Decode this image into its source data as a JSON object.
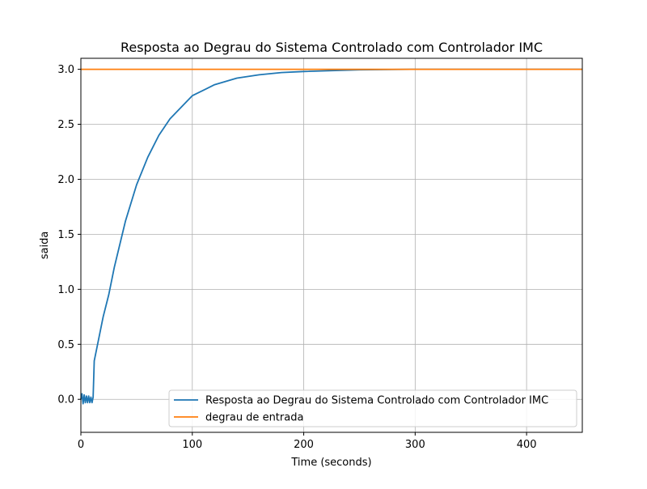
{
  "chart_data": {
    "type": "line",
    "title": "Resposta ao Degrau do Sistema Controlado com Controlador IMC",
    "xlabel": "Time (seconds)",
    "ylabel": "saida",
    "xlim": [
      0,
      450
    ],
    "ylim": [
      -0.3,
      3.1
    ],
    "x_ticks": [
      0,
      100,
      200,
      300,
      400
    ],
    "x_tick_labels": [
      "0",
      "100",
      "200",
      "300",
      "400"
    ],
    "y_ticks": [
      0,
      0.5,
      1.0,
      1.5,
      2.0,
      2.5,
      3.0
    ],
    "y_tick_labels": [
      "0.0",
      "0.5",
      "1.0",
      "1.5",
      "2.0",
      "2.5",
      "3.0"
    ],
    "grid": true,
    "legend_position": "bottom-right",
    "series": [
      {
        "name": "Resposta ao Degrau do Sistema Controlado com Controlador IMC",
        "color": "#1f77b4",
        "x": [
          0,
          1,
          2,
          3,
          4,
          5,
          6,
          7,
          8,
          9,
          10,
          11,
          12,
          15,
          20,
          23,
          25,
          30,
          40,
          50,
          60,
          70,
          80,
          100,
          120,
          140,
          160,
          180,
          200,
          250,
          300,
          350,
          400,
          450
        ],
        "y": [
          0,
          0.05,
          -0.04,
          0.04,
          -0.03,
          0.03,
          -0.03,
          0.03,
          -0.03,
          0.02,
          -0.03,
          0.02,
          0.35,
          0.5,
          0.75,
          0.87,
          0.95,
          1.2,
          1.62,
          1.95,
          2.2,
          2.4,
          2.55,
          2.76,
          2.86,
          2.92,
          2.95,
          2.97,
          2.98,
          2.995,
          3.0,
          3.0,
          3.0,
          3.0
        ]
      },
      {
        "name": "degrau de entrada",
        "color": "#ff7f0e",
        "x": [
          0,
          450
        ],
        "y": [
          3.0,
          3.0
        ]
      }
    ]
  }
}
